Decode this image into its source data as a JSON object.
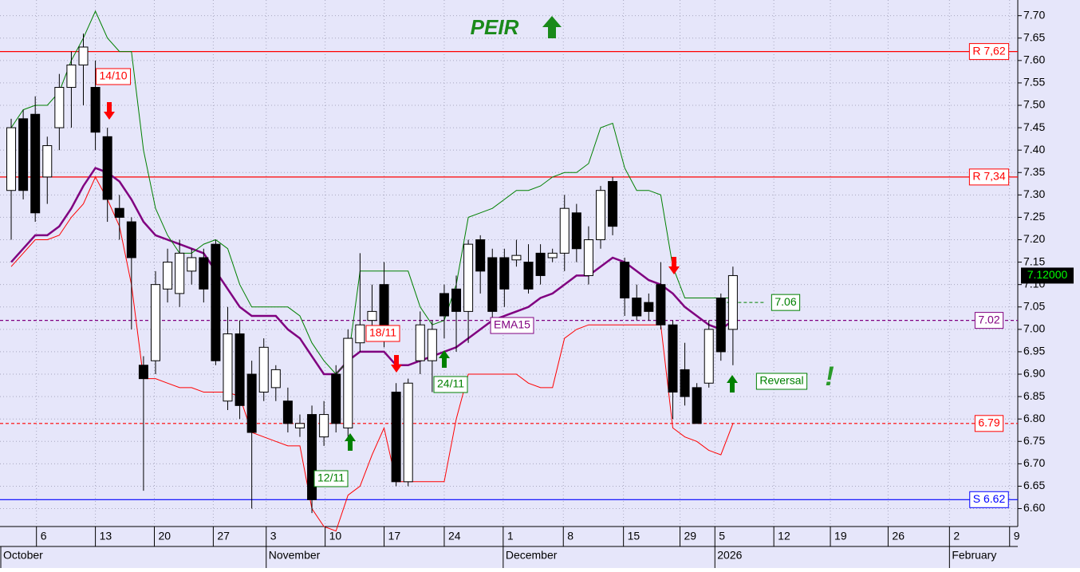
{
  "chart_data": {
    "type": "candlestick",
    "title": "PEIR",
    "ylim": [
      6.56,
      7.735
    ],
    "xlim": [
      -0.93,
      83.68
    ],
    "yticks": [
      {
        "value": 6.6,
        "label": "6.60"
      },
      {
        "value": 6.65,
        "label": "6.65"
      },
      {
        "value": 6.7,
        "label": "6.70"
      },
      {
        "value": 6.75,
        "label": "6.75"
      },
      {
        "value": 6.8,
        "label": "6.80"
      },
      {
        "value": 6.85,
        "label": "6.85"
      },
      {
        "value": 6.9,
        "label": "6.90"
      },
      {
        "value": 6.95,
        "label": "6.95"
      },
      {
        "value": 7.0,
        "label": "7.00"
      },
      {
        "value": 7.05,
        "label": "7.05"
      },
      {
        "value": 7.1,
        "label": "7.10"
      },
      {
        "value": 7.15,
        "label": "7.15"
      },
      {
        "value": 7.2,
        "label": "7.20"
      },
      {
        "value": 7.25,
        "label": "7.25"
      },
      {
        "value": 7.3,
        "label": "7.30"
      },
      {
        "value": 7.35,
        "label": "7.35"
      },
      {
        "value": 7.4,
        "label": "7.40"
      },
      {
        "value": 7.45,
        "label": "7.45"
      },
      {
        "value": 7.5,
        "label": "7.50"
      },
      {
        "value": 7.55,
        "label": "7.55"
      },
      {
        "value": 7.6,
        "label": "7.60"
      },
      {
        "value": 7.65,
        "label": "7.65"
      },
      {
        "value": 7.7,
        "label": "7.70"
      }
    ],
    "xticks": [
      {
        "value": 2.1,
        "label": "6"
      },
      {
        "value": 7.0,
        "label": "13"
      },
      {
        "value": 11.9,
        "label": "20"
      },
      {
        "value": 16.8,
        "label": "27"
      },
      {
        "value": 21.2,
        "label": "3"
      },
      {
        "value": 26.1,
        "label": "10"
      },
      {
        "value": 31.0,
        "label": "17"
      },
      {
        "value": 36.0,
        "label": "24"
      },
      {
        "value": 40.9,
        "label": "1"
      },
      {
        "value": 45.9,
        "label": "8"
      },
      {
        "value": 50.9,
        "label": "15"
      },
      {
        "value": 55.6,
        "label": "29"
      },
      {
        "value": 58.5,
        "label": "5"
      },
      {
        "value": 63.4,
        "label": "12"
      },
      {
        "value": 68.1,
        "label": "19"
      },
      {
        "value": 72.9,
        "label": "26"
      },
      {
        "value": 78.0,
        "label": "2"
      },
      {
        "value": 83.0,
        "label": "9"
      }
    ],
    "months": [
      {
        "value": -0.93,
        "label": "October"
      },
      {
        "value": 21.2,
        "label": "November"
      },
      {
        "value": 40.9,
        "label": "December"
      },
      {
        "value": 58.5,
        "label": "2026"
      },
      {
        "value": 78.0,
        "label": "February"
      }
    ],
    "grid": true,
    "candles": {
      "open": [
        7.31,
        7.47,
        7.48,
        7.34,
        7.45,
        7.54,
        7.59,
        7.54,
        7.43,
        7.27,
        7.24,
        6.92,
        6.93,
        7.09,
        7.08,
        7.13,
        7.16,
        7.19,
        6.84,
        6.99,
        6.9,
        6.86,
        6.87,
        6.84,
        6.78,
        6.81,
        6.76,
        6.9,
        6.78,
        6.97,
        7.02,
        7.1,
        6.86,
        6.66,
        6.93,
        6.93,
        7.08,
        7.09,
        7.04,
        7.2,
        7.16,
        7.16,
        7.155,
        7.15,
        7.17,
        7.16,
        7.17,
        7.26,
        7.12,
        7.2,
        7.33,
        7.15,
        7.07,
        7.06,
        7.1,
        7.01,
        6.91,
        6.87,
        6.88,
        7.07,
        7.0
      ],
      "high": [
        7.47,
        7.49,
        7.52,
        7.43,
        7.57,
        7.62,
        7.66,
        7.6,
        7.45,
        7.3,
        7.25,
        6.94,
        7.13,
        7.18,
        7.2,
        7.18,
        7.18,
        7.2,
        7.05,
        7.02,
        6.93,
        6.98,
        6.92,
        6.87,
        6.81,
        6.83,
        6.84,
        6.92,
        7.0,
        7.17,
        7.1,
        7.15,
        6.88,
        6.89,
        7.04,
        7.02,
        7.1,
        7.12,
        7.2,
        7.21,
        7.18,
        7.18,
        7.2,
        7.19,
        7.19,
        7.18,
        7.3,
        7.28,
        7.23,
        7.32,
        7.34,
        7.16,
        7.1,
        7.08,
        7.15,
        7.02,
        6.97,
        6.88,
        7.02,
        7.08,
        7.14
      ],
      "low": [
        7.2,
        7.29,
        7.24,
        7.28,
        7.4,
        7.45,
        7.5,
        7.4,
        7.24,
        7.2,
        7.0,
        6.64,
        6.9,
        7.06,
        7.05,
        7.1,
        7.06,
        6.92,
        6.82,
        6.8,
        6.6,
        6.84,
        6.84,
        6.77,
        6.76,
        6.59,
        6.74,
        6.77,
        6.76,
        6.95,
        6.98,
        6.96,
        6.65,
        6.65,
        6.9,
        6.86,
        6.98,
        6.95,
        6.97,
        7.08,
        7.02,
        7.05,
        7.14,
        7.08,
        7.1,
        7.15,
        7.13,
        7.15,
        7.1,
        7.18,
        7.21,
        7.03,
        7.02,
        7.02,
        7.0,
        6.8,
        6.83,
        6.79,
        6.87,
        6.93,
        6.92
      ],
      "close": [
        7.45,
        7.31,
        7.26,
        7.41,
        7.54,
        7.59,
        7.63,
        7.44,
        7.29,
        7.25,
        7.16,
        6.89,
        7.1,
        7.15,
        7.17,
        7.16,
        7.09,
        6.93,
        6.99,
        6.83,
        6.77,
        6.96,
        6.91,
        6.79,
        6.79,
        6.62,
        6.81,
        6.79,
        6.98,
        7.01,
        7.04,
        6.98,
        6.66,
        6.88,
        7.01,
        7.0,
        7.03,
        7.04,
        7.19,
        7.13,
        7.04,
        7.09,
        7.165,
        7.09,
        7.12,
        7.17,
        7.27,
        7.18,
        7.2,
        7.31,
        7.23,
        7.07,
        7.03,
        7.04,
        7.01,
        6.86,
        6.85,
        6.79,
        7.0,
        6.95,
        7.12
      ]
    },
    "series": [
      {
        "name": "EMA15",
        "color": "#800080",
        "width": 2.5,
        "values": [
          7.15,
          7.18,
          7.21,
          7.21,
          7.23,
          7.27,
          7.32,
          7.36,
          7.35,
          7.33,
          7.29,
          7.24,
          7.21,
          7.2,
          7.19,
          7.18,
          7.17,
          7.13,
          7.09,
          7.05,
          7.03,
          7.03,
          7.03,
          7.0,
          6.98,
          6.94,
          6.9,
          6.9,
          6.93,
          6.95,
          6.95,
          6.95,
          6.92,
          6.92,
          6.93,
          6.94,
          6.95,
          6.96,
          6.98,
          7.0,
          7.02,
          7.03,
          7.04,
          7.05,
          7.07,
          7.08,
          7.1,
          7.12,
          7.12,
          7.14,
          7.16,
          7.15,
          7.13,
          7.11,
          7.1,
          7.08,
          7.05,
          7.03,
          7.01,
          7.0,
          7.02
        ]
      },
      {
        "name": "upper",
        "color": "#008000",
        "width": 1,
        "values": [
          7.45,
          7.49,
          7.5,
          7.5,
          7.53,
          7.6,
          7.65,
          7.71,
          7.65,
          7.62,
          7.62,
          7.4,
          7.27,
          7.21,
          7.17,
          7.17,
          7.19,
          7.2,
          7.18,
          7.1,
          7.05,
          7.05,
          7.05,
          7.05,
          7.03,
          6.97,
          6.93,
          6.9,
          6.93,
          7.13,
          7.13,
          7.13,
          7.13,
          7.13,
          7.05,
          7.01,
          7.02,
          7.1,
          7.25,
          7.26,
          7.27,
          7.29,
          7.31,
          7.31,
          7.32,
          7.34,
          7.35,
          7.35,
          7.37,
          7.45,
          7.46,
          7.36,
          7.31,
          7.31,
          7.3,
          7.14,
          7.07,
          7.07,
          7.07,
          7.07,
          7.07
        ]
      },
      {
        "name": "lower",
        "color": "#ff0000",
        "width": 1,
        "values": [
          7.14,
          7.17,
          7.2,
          7.2,
          7.21,
          7.25,
          7.28,
          7.34,
          7.29,
          7.23,
          7.1,
          6.89,
          6.89,
          6.88,
          6.87,
          6.87,
          6.86,
          6.86,
          6.86,
          6.85,
          6.77,
          6.76,
          6.75,
          6.74,
          6.74,
          6.6,
          6.56,
          6.55,
          6.63,
          6.65,
          6.72,
          6.78,
          6.66,
          6.66,
          6.66,
          6.66,
          6.66,
          6.8,
          6.9,
          6.9,
          6.9,
          6.9,
          6.9,
          6.88,
          6.87,
          6.87,
          6.98,
          7.0,
          7.01,
          7.01,
          7.01,
          7.01,
          7.01,
          7.01,
          7.01,
          6.78,
          6.76,
          6.75,
          6.73,
          6.72,
          6.79
        ]
      }
    ],
    "levels": [
      {
        "label": "R 7,62",
        "value": 7.62,
        "color": "#ff0000",
        "dashed": false
      },
      {
        "label": "R 7,34",
        "value": 7.34,
        "color": "#ff0000",
        "dashed": false
      },
      {
        "label": "7.02",
        "value": 7.02,
        "color": "#800080",
        "dashed": true
      },
      {
        "label": "6.79",
        "value": 6.79,
        "color": "#ff0000",
        "dashed": true
      },
      {
        "label": "S 6.62",
        "value": 6.62,
        "color": "#0000ff",
        "dashed": false
      }
    ],
    "last_price": {
      "value": 7.12,
      "label": "7.12000"
    },
    "target": {
      "value": 7.06,
      "label": "7.06"
    },
    "annotations": {
      "d1": "14/10",
      "d2": "18/11",
      "d3": "24/11",
      "d4": "12/11",
      "ema": "EMA15",
      "reversal": "Reversal",
      "bang": "!"
    }
  }
}
